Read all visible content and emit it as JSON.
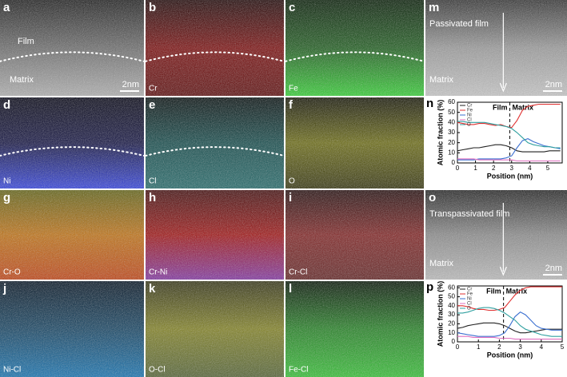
{
  "panels": [
    {
      "letter": "a",
      "film": "Film",
      "matrix": "Matrix",
      "scale": "2nm"
    },
    {
      "letter": "b",
      "element": "Cr"
    },
    {
      "letter": "c",
      "element": "Fe"
    },
    {
      "letter": "d",
      "element": "Ni"
    },
    {
      "letter": "e",
      "element": "Cl"
    },
    {
      "letter": "f",
      "element": "O"
    },
    {
      "letter": "g",
      "element": "Cr-O"
    },
    {
      "letter": "h",
      "element": "Cr-Ni"
    },
    {
      "letter": "i",
      "element": "Cr-Cl"
    },
    {
      "letter": "j",
      "element": "Ni-Cl"
    },
    {
      "letter": "k",
      "element": "O-Cl"
    },
    {
      "letter": "l",
      "element": "Fe-Cl"
    },
    {
      "letter": "m",
      "film": "Passivated film",
      "matrix": "Matrix",
      "scale": "2nm"
    },
    {
      "letter": "o",
      "film": "Transpassivated film",
      "matrix": "Matrix",
      "scale": "2nm"
    }
  ],
  "chart_data": [
    {
      "type": "line",
      "letter": "n",
      "x_label": "Position (nm)",
      "y_label": "Atomic fraction (%)",
      "annotations": [
        "Film",
        "Matrix"
      ],
      "boundary": 2.9,
      "x": [
        0,
        0.3,
        0.6,
        0.9,
        1.2,
        1.5,
        1.8,
        2.1,
        2.4,
        2.7,
        3.0,
        3.3,
        3.6,
        3.9,
        4.2,
        4.5,
        4.8,
        5.1,
        5.4,
        5.7
      ],
      "xlim": [
        0,
        5.8
      ],
      "xticks": [
        0,
        1,
        2,
        3,
        4,
        5
      ],
      "ylim": [
        0,
        60
      ],
      "yticks": [
        0,
        10,
        20,
        30,
        40,
        50,
        60
      ],
      "series": [
        {
          "name": "Cr",
          "color": "#222222",
          "values": [
            12,
            13,
            14,
            15,
            15,
            16,
            17,
            18,
            18,
            17,
            15,
            12,
            11,
            11,
            11,
            11,
            11,
            12,
            12,
            12
          ]
        },
        {
          "name": "Fe",
          "color": "#e03030",
          "values": [
            40,
            39,
            38,
            38,
            39,
            39,
            38,
            37,
            38,
            36,
            35,
            42,
            52,
            56,
            57,
            58,
            58,
            58,
            58,
            58
          ]
        },
        {
          "name": "Ni",
          "color": "#3a6fd0",
          "values": [
            3,
            3,
            3,
            3,
            4,
            4,
            4,
            4,
            4,
            5,
            7,
            15,
            22,
            24,
            21,
            19,
            17,
            16,
            15,
            14
          ]
        },
        {
          "name": "Cl",
          "color": "#e070c0",
          "values": [
            4,
            4,
            4,
            4,
            3,
            3,
            3,
            3,
            3,
            3,
            3,
            2,
            2,
            2,
            2,
            2,
            2,
            2,
            2,
            2
          ]
        },
        {
          "name": "O",
          "color": "#30a0a0",
          "values": [
            41,
            41,
            40,
            40,
            40,
            40,
            39,
            38,
            37,
            36,
            34,
            30,
            25,
            20,
            18,
            17,
            16,
            16,
            15,
            15
          ]
        }
      ]
    },
    {
      "type": "line",
      "letter": "p",
      "x_label": "Position (nm)",
      "y_label": "Atomic fraction (%)",
      "annotations": [
        "Film",
        "Matrix"
      ],
      "boundary": 2.2,
      "x": [
        0,
        0.25,
        0.5,
        0.75,
        1,
        1.25,
        1.5,
        1.75,
        2,
        2.25,
        2.5,
        2.75,
        3,
        3.25,
        3.5,
        3.75,
        4,
        4.25,
        4.5,
        4.75,
        5
      ],
      "xlim": [
        0,
        5
      ],
      "xticks": [
        0,
        1,
        2,
        3,
        4,
        5
      ],
      "ylim": [
        0,
        62
      ],
      "yticks": [
        0,
        10,
        20,
        30,
        40,
        50,
        60
      ],
      "series": [
        {
          "name": "Cr",
          "color": "#222222",
          "values": [
            15,
            16,
            18,
            19,
            20,
            21,
            21,
            21,
            20,
            18,
            15,
            12,
            10,
            10,
            11,
            12,
            13,
            14,
            14,
            14,
            14
          ]
        },
        {
          "name": "Fe",
          "color": "#e03030",
          "values": [
            40,
            40,
            39,
            37,
            36,
            36,
            35,
            35,
            36,
            38,
            45,
            52,
            57,
            60,
            61,
            61,
            61,
            61,
            61,
            61,
            61
          ]
        },
        {
          "name": "Ni",
          "color": "#3a6fd0",
          "values": [
            10,
            9,
            8,
            7,
            6,
            6,
            6,
            6,
            7,
            10,
            18,
            28,
            33,
            30,
            24,
            18,
            15,
            14,
            13,
            13,
            13
          ]
        },
        {
          "name": "Cl",
          "color": "#e070c0",
          "values": [
            6,
            6,
            6,
            5,
            5,
            5,
            5,
            5,
            4,
            4,
            4,
            3,
            3,
            3,
            3,
            3,
            3,
            3,
            3,
            3,
            3
          ]
        },
        {
          "name": "O",
          "color": "#30a0a0",
          "values": [
            32,
            32,
            33,
            35,
            37,
            38,
            38,
            37,
            35,
            32,
            28,
            24,
            18,
            14,
            12,
            10,
            8,
            7,
            6,
            6,
            6
          ]
        }
      ]
    }
  ]
}
